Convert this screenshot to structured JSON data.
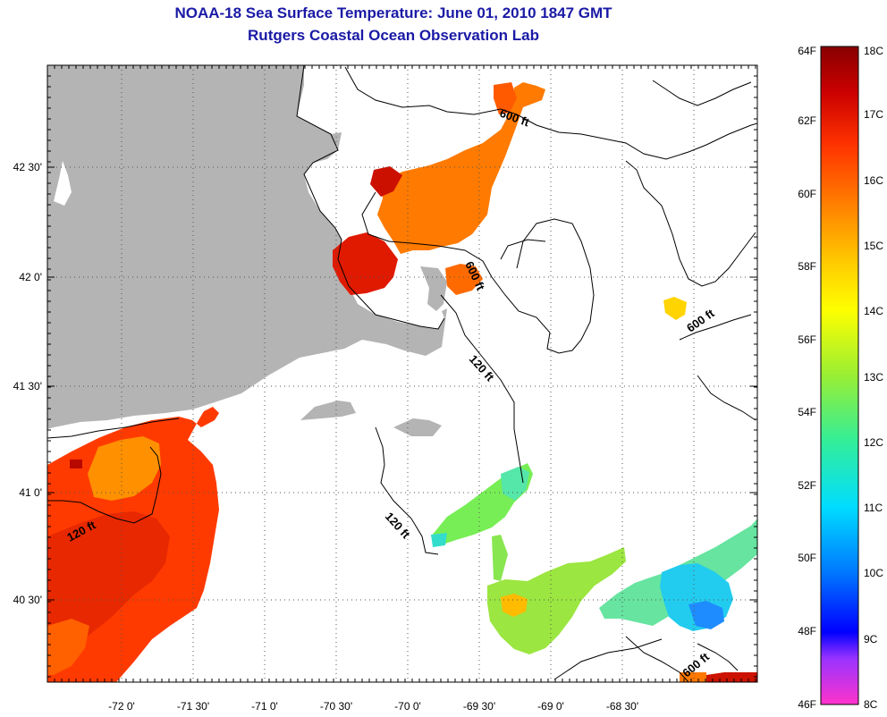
{
  "title": {
    "line1": "NOAA-18 Sea Surface Temperature:  June 01, 2010 1847 GMT",
    "line2": "Rutgers Coastal Ocean Observation Lab"
  },
  "map": {
    "lat_labels": [
      "42 30'",
      "42 0'",
      "41 30'",
      "41 0'",
      "40 30'"
    ],
    "lon_labels": [
      "-72 0'",
      "-71 30'",
      "-71 0'",
      "-70 30'",
      "-70 0'",
      "-69 30'",
      "-69 0'",
      "-68 30'"
    ],
    "contour_labels": [
      "600 ft",
      "600 ft",
      "600 ft",
      "120 ft",
      "120 ft",
      "120 ft",
      "600 ft"
    ]
  },
  "colorbar": {
    "fahrenheit_labels": [
      "64F",
      "62F",
      "60F",
      "58F",
      "56F",
      "54F",
      "52F",
      "50F",
      "48F",
      "46F"
    ],
    "celsius_labels": [
      "18C",
      "17C",
      "16C",
      "15C",
      "14C",
      "13C",
      "12C",
      "11C",
      "10C",
      "9C",
      "8C"
    ],
    "colors": [
      "#ff33cc",
      "#9933ff",
      "#0000ff",
      "#0077ff",
      "#00ddff",
      "#33ee99",
      "#99ee33",
      "#ffff00",
      "#ffcc00",
      "#ff8800",
      "#ff3300",
      "#cc0000",
      "#880000"
    ]
  },
  "colors": {
    "land": "#b4b4b4",
    "title": "#1a1aa6"
  }
}
